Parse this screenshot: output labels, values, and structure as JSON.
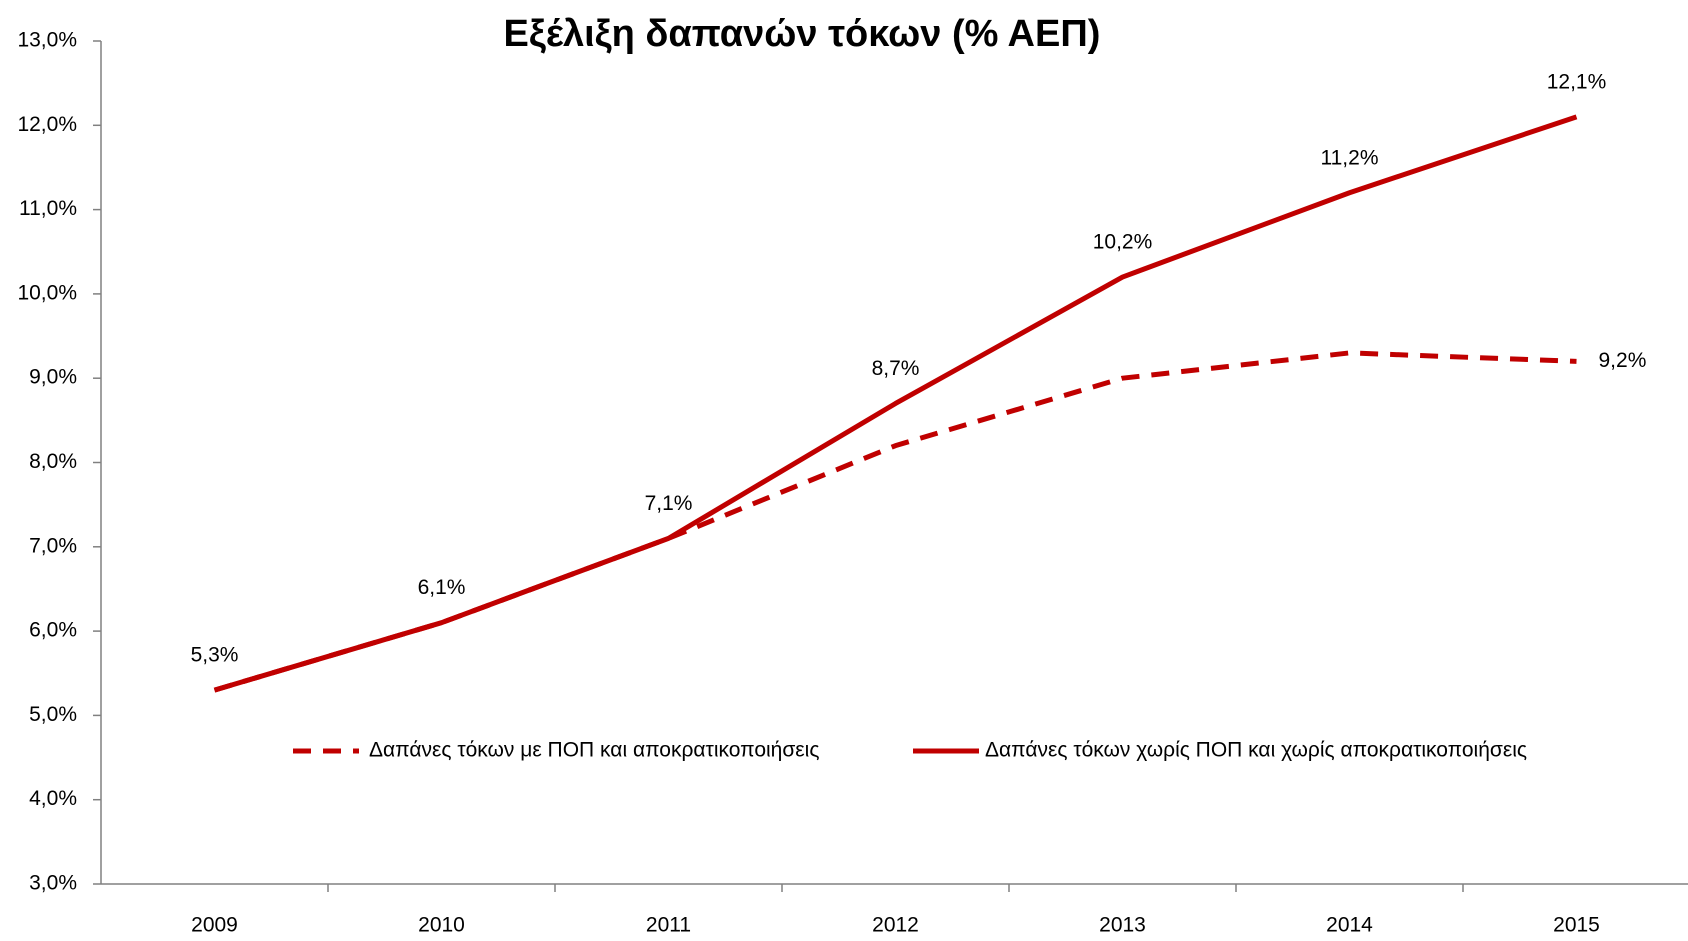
{
  "chart_data": {
    "type": "line",
    "title": "Εξέλιξη δαπανών τόκων (% ΑΕΠ)",
    "categories": [
      "2009",
      "2010",
      "2011",
      "2012",
      "2013",
      "2014",
      "2015"
    ],
    "series": [
      {
        "name": "Δαπάνες τόκων με ΠΟΠ και αποκρατικοποιήσεις",
        "color": "#c00000",
        "dash": true,
        "values": [
          5.3,
          6.1,
          7.1,
          8.2,
          9.0,
          9.3,
          9.2
        ],
        "value_labels": [
          null,
          null,
          null,
          null,
          null,
          null,
          "9,2%"
        ]
      },
      {
        "name": "Δαπάνες τόκων χωρίς ΠΟΠ και χωρίς αποκρατικοποιήσεις",
        "color": "#c00000",
        "dash": false,
        "values": [
          5.3,
          6.1,
          7.1,
          8.7,
          10.2,
          11.2,
          12.1
        ],
        "value_labels": [
          "5,3%",
          "6,1%",
          "7,1%",
          "8,7%",
          "10,2%",
          "11,2%",
          "12,1%"
        ]
      }
    ],
    "ylim": [
      3,
      13
    ],
    "yticks": [
      {
        "value": 3,
        "label": "3,0%"
      },
      {
        "value": 4,
        "label": "4,0%"
      },
      {
        "value": 5,
        "label": "5,0%"
      },
      {
        "value": 6,
        "label": "6,0%"
      },
      {
        "value": 7,
        "label": "7,0%"
      },
      {
        "value": 8,
        "label": "8,0%"
      },
      {
        "value": 9,
        "label": "9,0%"
      },
      {
        "value": 10,
        "label": "10,0%"
      },
      {
        "value": 11,
        "label": "11,0%"
      },
      {
        "value": 12,
        "label": "12,0%"
      },
      {
        "value": 13,
        "label": "13,0%"
      }
    ],
    "grid": false,
    "legend": "inside"
  }
}
